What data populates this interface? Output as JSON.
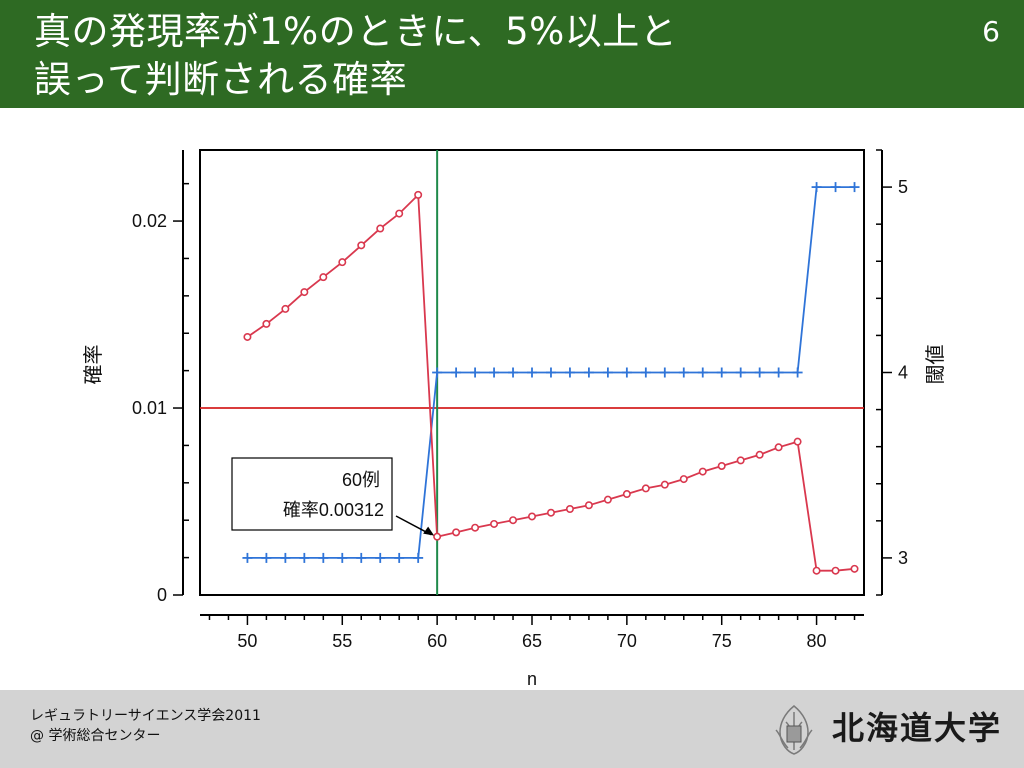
{
  "slide": {
    "title": "真の発現率が1%のときに、5%以上と\n誤って判断される確率",
    "page_number": "6"
  },
  "footer": {
    "organization": "レギュラトリーサイエンス学会2011",
    "department": "@ 学術総合センター",
    "university": "北海道大学"
  },
  "colors": {
    "header_bg": "#2e6a23",
    "footer_bg": "#d3d3d3",
    "probability_series": "#d9384e",
    "threshold_series": "#2f74d8",
    "reference_line": "#d42020",
    "marker_line": "#1f8a4a"
  },
  "chart_data": {
    "type": "line",
    "xlabel": "n",
    "ylabel_left": "確率",
    "ylabel_right": "閾値",
    "xlim": [
      47.5,
      82.5
    ],
    "ylim_left": [
      0,
      0.0238
    ],
    "ylim_right": [
      2.8,
      5.2
    ],
    "x_ticks": [
      50,
      55,
      60,
      65,
      70,
      75,
      80
    ],
    "y_ticks_left": [
      0,
      0.01,
      0.02
    ],
    "y_tick_labels_left": [
      "0",
      "0.01",
      "0.02"
    ],
    "y_ticks_right": [
      3,
      4,
      5
    ],
    "y_tick_labels_right": [
      "3",
      "4",
      "5"
    ],
    "reference_y": 0.01,
    "marker_x": 60,
    "annotation": {
      "line1": "60例",
      "line2": "確率0.00312",
      "x": 60,
      "y": 0.00312
    },
    "series": [
      {
        "axis": "left",
        "marker": "circle",
        "x": [
          50,
          51,
          52,
          53,
          54,
          55,
          56,
          57,
          58,
          59,
          60,
          61,
          62,
          63,
          64,
          65,
          66,
          67,
          68,
          69,
          70,
          71,
          72,
          73,
          74,
          75,
          76,
          77,
          78,
          79,
          80,
          81,
          82
        ],
        "values": [
          0.0138,
          0.0145,
          0.0153,
          0.0162,
          0.017,
          0.0178,
          0.0187,
          0.0196,
          0.0204,
          0.0214,
          0.00312,
          0.00335,
          0.0036,
          0.0038,
          0.004,
          0.0042,
          0.0044,
          0.0046,
          0.0048,
          0.0051,
          0.0054,
          0.0057,
          0.0059,
          0.0062,
          0.0066,
          0.0069,
          0.0072,
          0.0075,
          0.0079,
          0.0082,
          0.0013,
          0.0013,
          0.0014
        ]
      },
      {
        "axis": "right",
        "marker": "plus",
        "x": [
          50,
          51,
          52,
          53,
          54,
          55,
          56,
          57,
          58,
          59,
          60,
          61,
          62,
          63,
          64,
          65,
          66,
          67,
          68,
          69,
          70,
          71,
          72,
          73,
          74,
          75,
          76,
          77,
          78,
          79,
          80,
          81,
          82
        ],
        "values": [
          3,
          3,
          3,
          3,
          3,
          3,
          3,
          3,
          3,
          3,
          4,
          4,
          4,
          4,
          4,
          4,
          4,
          4,
          4,
          4,
          4,
          4,
          4,
          4,
          4,
          4,
          4,
          4,
          4,
          4,
          5,
          5,
          5
        ]
      }
    ]
  }
}
